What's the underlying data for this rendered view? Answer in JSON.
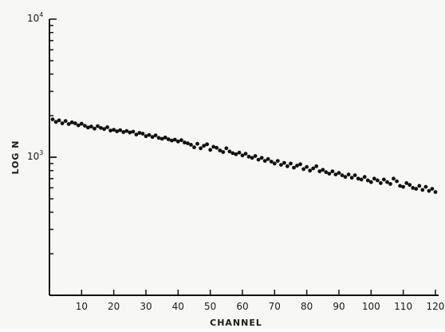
{
  "chart_data": {
    "type": "scatter",
    "title": "",
    "xlabel": "CHANNEL",
    "ylabel": "LOG N",
    "y_scale": "log",
    "xlim": [
      0,
      121
    ],
    "ylim": [
      100,
      10000
    ],
    "x_ticks": [
      10,
      20,
      30,
      40,
      50,
      60,
      70,
      80,
      90,
      100,
      110,
      120
    ],
    "y_tick_labels": [
      {
        "base": "10",
        "exp": "4",
        "value": 10000
      },
      {
        "base": "10",
        "exp": "3",
        "value": 1000
      }
    ],
    "grid": false,
    "legend": "none",
    "marker_color": "#111111",
    "series": [
      {
        "x": [
          1,
          2,
          3,
          4,
          5,
          6,
          7,
          8,
          9,
          10,
          11,
          12,
          13,
          14,
          15,
          16,
          17,
          18,
          19,
          20,
          21,
          22,
          23,
          24,
          25,
          26,
          27,
          28,
          29,
          30,
          31,
          32,
          33,
          34,
          35,
          36,
          37,
          38,
          39,
          40,
          41,
          42,
          43,
          44,
          45,
          46,
          47,
          48,
          49,
          50,
          51,
          52,
          53,
          54,
          55,
          56,
          57,
          58,
          59,
          60,
          61,
          62,
          63,
          64,
          65,
          66,
          67,
          68,
          69,
          70,
          71,
          72,
          73,
          74,
          75,
          76,
          77,
          78,
          79,
          80,
          81,
          82,
          83,
          84,
          85,
          86,
          87,
          88,
          89,
          90,
          91,
          92,
          93,
          94,
          95,
          96,
          97,
          98,
          99,
          100,
          101,
          102,
          103,
          104,
          105,
          106,
          107,
          108,
          109,
          110,
          111,
          112,
          113,
          114,
          115,
          116,
          117,
          118,
          119,
          120
        ],
        "values": [
          1880,
          1800,
          1850,
          1760,
          1830,
          1740,
          1790,
          1760,
          1700,
          1750,
          1690,
          1640,
          1670,
          1610,
          1680,
          1630,
          1600,
          1650,
          1560,
          1580,
          1540,
          1570,
          1520,
          1550,
          1510,
          1530,
          1460,
          1500,
          1480,
          1420,
          1450,
          1400,
          1440,
          1380,
          1360,
          1390,
          1350,
          1320,
          1340,
          1300,
          1330,
          1280,
          1260,
          1230,
          1180,
          1250,
          1160,
          1210,
          1240,
          1130,
          1190,
          1170,
          1120,
          1090,
          1160,
          1100,
          1070,
          1050,
          1080,
          1030,
          1060,
          1010,
          990,
          1020,
          960,
          990,
          940,
          970,
          930,
          900,
          940,
          880,
          910,
          860,
          900,
          840,
          870,
          890,
          820,
          850,
          800,
          830,
          860,
          790,
          810,
          780,
          760,
          790,
          750,
          770,
          740,
          720,
          750,
          710,
          740,
          700,
          690,
          720,
          680,
          660,
          700,
          680,
          650,
          690,
          660,
          640,
          700,
          670,
          620,
          610,
          650,
          630,
          600,
          590,
          620,
          580,
          610,
          570,
          590,
          560
        ]
      }
    ]
  }
}
